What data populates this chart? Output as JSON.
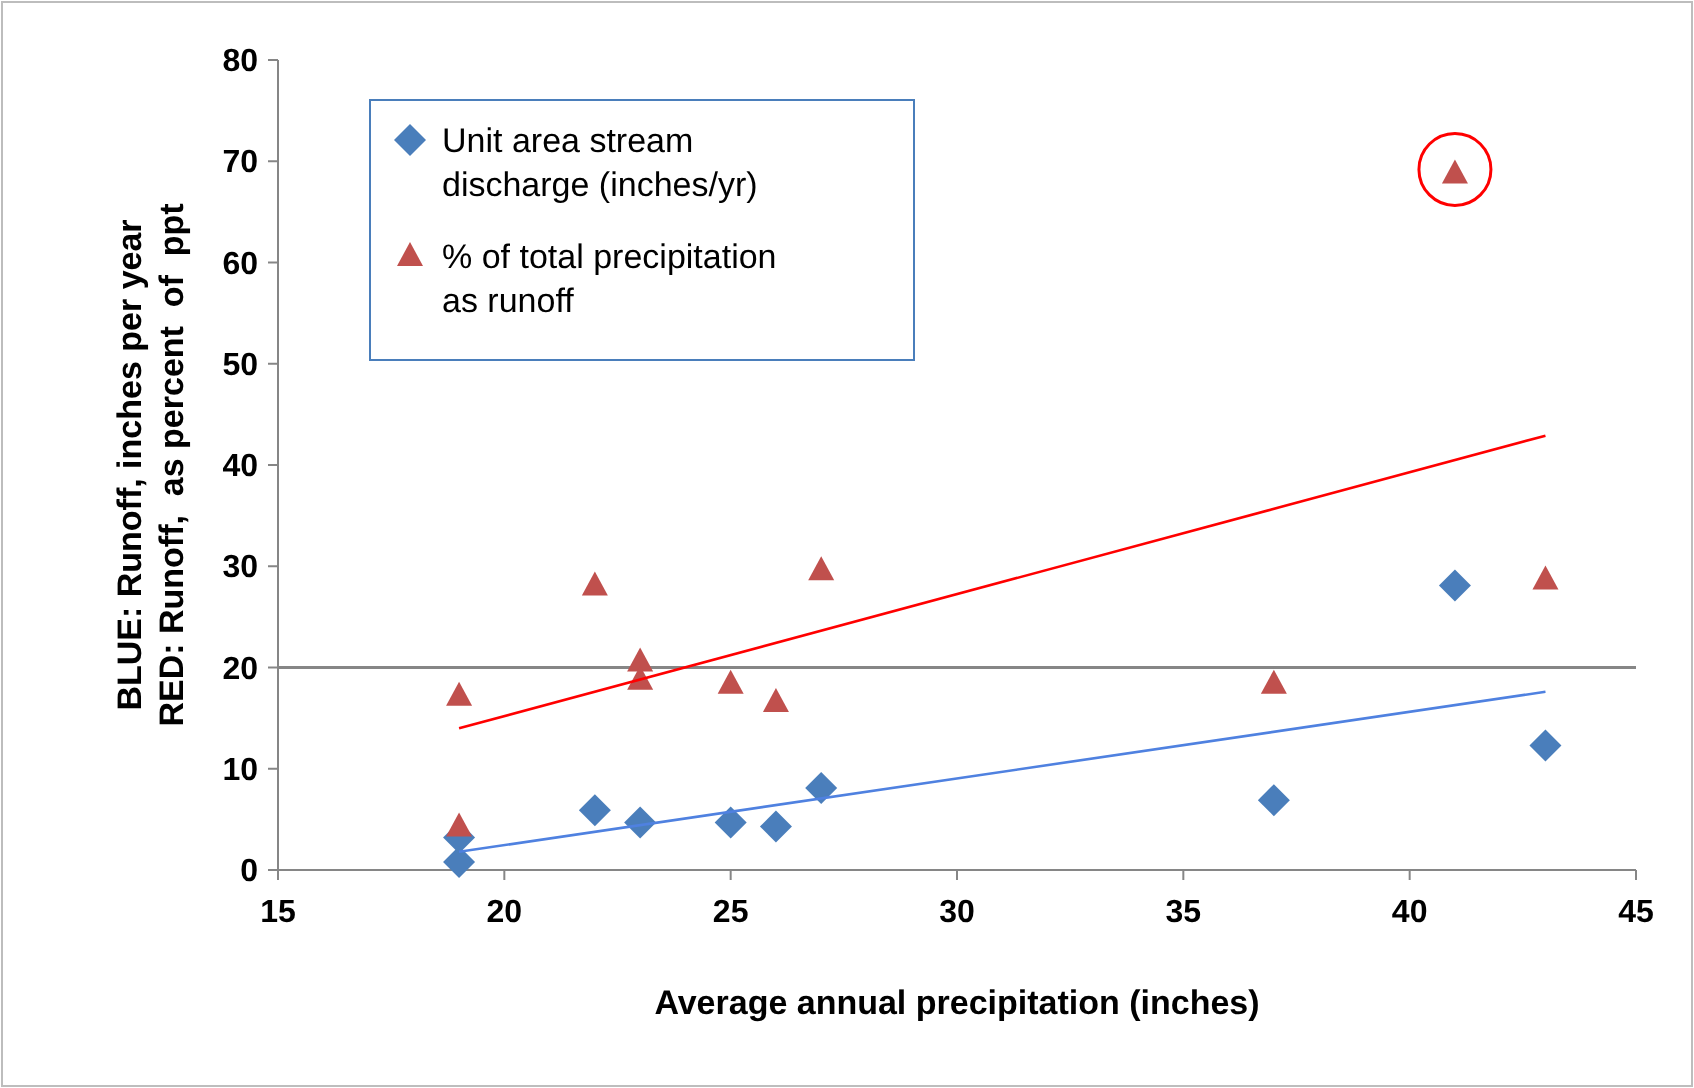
{
  "chart_data": {
    "type": "scatter",
    "xlabel": "Average annual precipitation (inches)",
    "ylabel": "BLUE: Runoff, inches per year\nRED: Runoff,  as percent  of  ppt",
    "xlim": [
      15,
      45
    ],
    "xticks": [
      15,
      20,
      25,
      30,
      35,
      40,
      45
    ],
    "ylim": [
      0,
      80
    ],
    "yticks": [
      0,
      10,
      20,
      30,
      40,
      50,
      60,
      70,
      80
    ],
    "grid": false,
    "legend": "top left",
    "ref_lines": [
      {
        "axis": "y",
        "value": 20,
        "color": "#868686"
      }
    ],
    "series": [
      {
        "name": "Unit area stream discharge (inches/yr)",
        "color": "#4a7ebb",
        "marker": "diamond",
        "x": [
          19,
          19,
          22,
          23,
          25,
          26,
          27,
          37,
          41,
          43
        ],
        "values": [
          3.2,
          0.8,
          5.9,
          4.7,
          4.7,
          4.3,
          8.1,
          6.9,
          28.1,
          12.3
        ]
      },
      {
        "name": "% of total precipitation as runoff",
        "color": "#c0504d",
        "marker": "triangle",
        "x": [
          19,
          19,
          22,
          23,
          23,
          25,
          26,
          27,
          37,
          41,
          43
        ],
        "values": [
          17.2,
          4.3,
          28.1,
          20.6,
          18.8,
          18.4,
          16.6,
          29.6,
          18.4,
          68.8,
          28.7
        ]
      },
      {
        "type": "line",
        "color": "#ff0000",
        "marker": "none",
        "x": [
          19,
          43
        ],
        "values": [
          14,
          42.9
        ]
      },
      {
        "type": "line",
        "color": "#4f81e0",
        "marker": "none",
        "x": [
          19,
          43
        ],
        "values": [
          1.8,
          17.6
        ]
      }
    ]
  }
}
